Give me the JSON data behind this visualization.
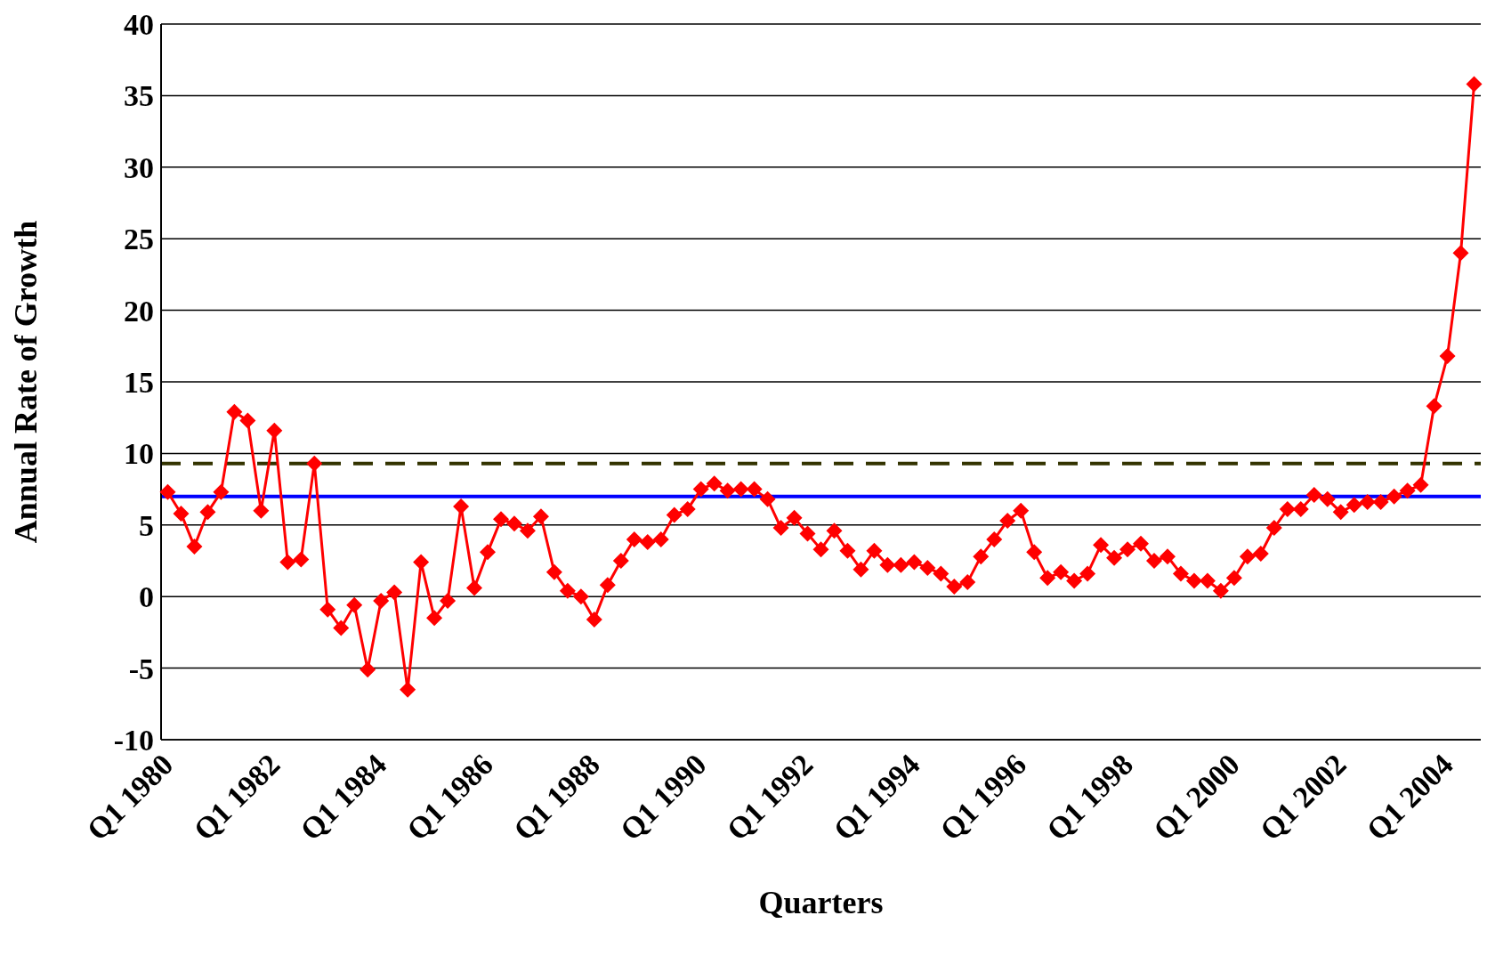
{
  "chart_data": {
    "type": "line",
    "xlabel": "Quarters",
    "ylabel": "Annual Rate of Growth",
    "categories": [
      "Q1 1980",
      null,
      null,
      null,
      null,
      null,
      null,
      null,
      "Q1 1982",
      null,
      null,
      null,
      null,
      null,
      null,
      null,
      "Q1 1984",
      null,
      null,
      null,
      null,
      null,
      null,
      null,
      "Q1 1986",
      null,
      null,
      null,
      null,
      null,
      null,
      null,
      "Q1 1988",
      null,
      null,
      null,
      null,
      null,
      null,
      null,
      "Q1 1990",
      null,
      null,
      null,
      null,
      null,
      null,
      null,
      "Q1 1992",
      null,
      null,
      null,
      null,
      null,
      null,
      null,
      "Q1 1994",
      null,
      null,
      null,
      null,
      null,
      null,
      null,
      "Q1 1996",
      null,
      null,
      null,
      null,
      null,
      null,
      null,
      "Q1 1998",
      null,
      null,
      null,
      null,
      null,
      null,
      null,
      "Q1 2000",
      null,
      null,
      null,
      null,
      null,
      null,
      null,
      "Q1 2002",
      null,
      null,
      null,
      null,
      null,
      null,
      null,
      "Q1 2004",
      null,
      null
    ],
    "series": [
      {
        "color": "#ff0000",
        "values": [
          7.3,
          5.8,
          3.5,
          5.9,
          7.3,
          12.9,
          12.3,
          6.0,
          11.6,
          2.4,
          2.6,
          9.3,
          -0.9,
          -2.2,
          -0.6,
          -5.1,
          -0.3,
          0.3,
          -6.5,
          2.4,
          -1.5,
          -0.3,
          6.3,
          0.6,
          3.1,
          5.4,
          5.1,
          4.6,
          5.6,
          1.7,
          0.4,
          0.0,
          -1.6,
          0.8,
          2.5,
          4.0,
          3.8,
          4.0,
          5.7,
          6.1,
          7.5,
          7.9,
          7.4,
          7.5,
          7.5,
          6.8,
          4.8,
          5.5,
          4.4,
          3.3,
          4.6,
          3.2,
          1.9,
          3.2,
          2.2,
          2.2,
          2.4,
          2.0,
          1.6,
          0.7,
          1.0,
          2.8,
          4.0,
          5.3,
          6.0,
          3.1,
          1.3,
          1.7,
          1.1,
          1.6,
          3.6,
          2.7,
          3.3,
          3.7,
          2.5,
          2.8,
          1.6,
          1.1,
          1.1,
          0.4,
          1.3,
          2.8,
          3.0,
          4.8,
          6.1,
          6.1,
          7.1,
          6.8,
          5.9,
          6.4,
          6.6,
          6.6,
          7.0,
          7.4,
          7.8,
          13.3,
          16.8,
          24.0,
          35.8
        ]
      }
    ],
    "ref_lines": [
      {
        "axis": "y",
        "value": 7.0,
        "color": "#0000ff",
        "line_style": "solid"
      },
      {
        "axis": "y",
        "value": 9.3,
        "color": "#333300",
        "line_style": "dashed"
      }
    ],
    "ylim": [
      -10,
      40
    ],
    "yticks": [
      -10,
      -5,
      0,
      5,
      10,
      15,
      20,
      25,
      30,
      35,
      40
    ],
    "grid": "y",
    "marker": "diamond",
    "line_style": "solid",
    "legend": false
  }
}
